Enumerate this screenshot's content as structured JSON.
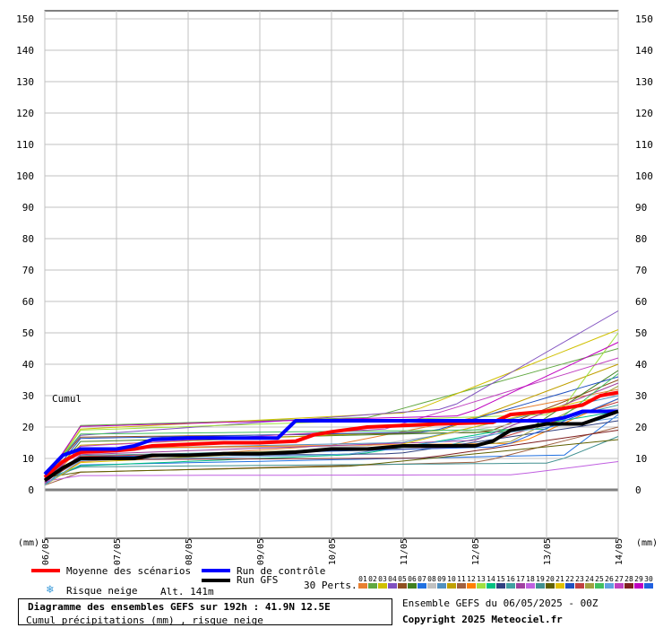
{
  "chart_data": {
    "type": "line",
    "y_ticks": [
      150,
      140,
      130,
      120,
      110,
      100,
      90,
      80,
      70,
      60,
      50,
      40,
      30,
      20,
      10,
      0
    ],
    "ylim": [
      0,
      150
    ],
    "x_ticks": [
      "06/05",
      "07/05",
      "08/05",
      "09/05",
      "10/05",
      "11/05",
      "12/05",
      "13/05",
      "14/05"
    ],
    "x_hours": [
      0,
      24,
      48,
      72,
      96,
      120,
      144,
      168,
      192
    ],
    "ylabel_left": "(mm)",
    "ylabel_right": "(mm)",
    "cumul_label": "Cumul",
    "series": [
      {
        "name": "Moyenne des scénarios",
        "color": "#ff0000",
        "x": [
          0,
          6,
          12,
          24,
          30,
          36,
          48,
          60,
          72,
          84,
          90,
          96,
          108,
          120,
          132,
          150,
          156,
          168,
          180,
          186,
          192
        ],
        "y": [
          4,
          9,
          12,
          12.5,
          13,
          14,
          14.5,
          15,
          15,
          15.5,
          17.5,
          18.5,
          20,
          20.5,
          21,
          21.5,
          24,
          25,
          27,
          30,
          31
        ]
      },
      {
        "name": "Run de contrôle",
        "color": "#0000ff",
        "x": [
          0,
          6,
          12,
          24,
          30,
          36,
          48,
          60,
          72,
          78,
          84,
          96,
          108,
          120,
          144,
          150,
          156,
          168,
          174,
          180,
          192
        ],
        "y": [
          5,
          11,
          13,
          13,
          14,
          16,
          16.5,
          16.5,
          16.5,
          16.5,
          22,
          22,
          22,
          22,
          22,
          22,
          22,
          22,
          23,
          25,
          25
        ]
      },
      {
        "name": "Run GFS",
        "color": "#000000",
        "x": [
          0,
          6,
          12,
          24,
          30,
          36,
          48,
          60,
          72,
          84,
          90,
          96,
          108,
          120,
          144,
          150,
          156,
          168,
          174,
          180,
          186,
          192
        ],
        "y": [
          3,
          7,
          10,
          10,
          10,
          11,
          11,
          11.5,
          11.5,
          12,
          12.5,
          13,
          13,
          14,
          14,
          15.5,
          19,
          21,
          21,
          21,
          23,
          25
        ]
      }
    ],
    "perturbations": {
      "labels": [
        "01",
        "02",
        "03",
        "04",
        "05",
        "06",
        "07",
        "08",
        "09",
        "10",
        "11",
        "12",
        "13",
        "14",
        "15",
        "16",
        "17",
        "18",
        "19",
        "20",
        "21",
        "22",
        "23",
        "24",
        "25",
        "26",
        "27",
        "28",
        "29",
        "30"
      ],
      "colors": [
        "#e88030",
        "#60a840",
        "#d0c000",
        "#8050c0",
        "#905020",
        "#408020",
        "#2070e0",
        "#c0c0c0",
        "#5090c0",
        "#c0a000",
        "#a06040",
        "#ff8000",
        "#a0e040",
        "#00c080",
        "#304080",
        "#40a0a0",
        "#a040a0",
        "#c060e0",
        "#409090",
        "#606000",
        "#e0c000",
        "#2050c0",
        "#c04040",
        "#a0a040",
        "#40c060",
        "#60a0e0",
        "#c040c0",
        "#802020",
        "#c000c0",
        "#2060e0"
      ],
      "finals": [
        32,
        45,
        51,
        57,
        35,
        38,
        24,
        26,
        30,
        40,
        20,
        29,
        50,
        25,
        22,
        27,
        34,
        9,
        17,
        16,
        31,
        36,
        28,
        33,
        37,
        23,
        42,
        19,
        47,
        29
      ]
    }
  },
  "legend": {
    "mean_label": "Moyenne des scénarios",
    "control_label": "Run de contrôle",
    "gfs_label": "Run GFS",
    "snow_label": "Risque neige",
    "alt_label": "Alt. 141m",
    "perts_label": "30 Perts."
  },
  "title": {
    "main": "Diagramme des ensembles GEFS sur 192h : 41.9N 12.5E",
    "sub": "Cumul précipitations (mm) , risque neige"
  },
  "footer": {
    "run_label": "Ensemble GEFS du 06/05/2025 - 00Z",
    "copyright": "Copyright 2025 Meteociel.fr"
  },
  "colors": {
    "mean": "#ff0000",
    "control": "#0000ff",
    "gfs": "#000000",
    "grid": "#c0c0c0",
    "snow_icon": "#3a9ad9"
  }
}
